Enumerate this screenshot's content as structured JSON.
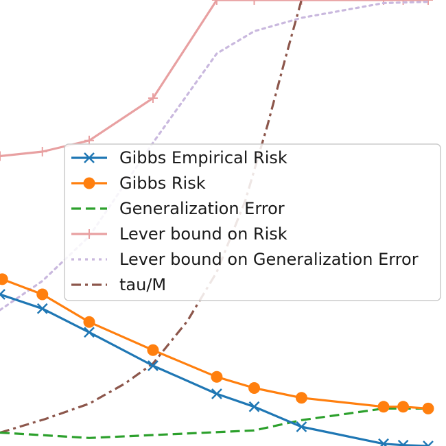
{
  "chart_data": {
    "type": "line",
    "title": "",
    "xlabel": "",
    "ylabel": "",
    "xlim": [
      0,
      10
    ],
    "ylim": [
      0,
      10
    ],
    "grid": false,
    "legend_position": "center-right",
    "series": [
      {
        "name": "Gibbs Empirical Risk",
        "color": "#1f77b4",
        "line_style": "solid",
        "marker": "x",
        "x": [
          0.0,
          0.95,
          2.0,
          3.43,
          4.86,
          5.7,
          6.76,
          8.6,
          9.04,
          9.6
        ],
        "y": [
          3.4,
          3.08,
          2.55,
          1.8,
          1.17,
          0.88,
          0.43,
          0.05,
          0.02,
          0.0
        ]
      },
      {
        "name": "Gibbs Risk",
        "color": "#ff7f0e",
        "line_style": "solid",
        "marker": "o",
        "x": [
          0.05,
          0.95,
          2.0,
          3.43,
          4.86,
          5.7,
          6.76,
          8.6,
          9.04,
          9.6
        ],
        "y": [
          3.74,
          3.4,
          2.78,
          2.15,
          1.55,
          1.3,
          1.08,
          0.88,
          0.88,
          0.84
        ]
      },
      {
        "name": "Generalization Error",
        "color": "#2ca02c",
        "line_style": "dashed",
        "marker": "",
        "x": [
          0.0,
          2.0,
          5.7,
          6.76,
          8.6,
          9.6
        ],
        "y": [
          0.3,
          0.18,
          0.35,
          0.58,
          0.84,
          0.84
        ]
      },
      {
        "name": "Lever bound on Risk",
        "color": "#e8a0a1",
        "line_style": "solid",
        "marker": "+",
        "x": [
          0.0,
          0.95,
          2.0,
          3.43,
          4.86,
          5.7,
          6.76,
          8.6,
          9.04,
          9.6
        ],
        "y": [
          6.5,
          6.6,
          6.85,
          7.8,
          10.0,
          10.0,
          10.0,
          10.0,
          10.0,
          10.0
        ]
      },
      {
        "name": "Lever bound on Generalization Error",
        "color": "#c9b8de",
        "line_style": "dotted",
        "marker": "",
        "x": [
          0.0,
          0.95,
          2.0,
          3.43,
          4.86,
          5.7,
          6.76,
          8.6,
          9.6
        ],
        "y": [
          3.05,
          3.7,
          4.7,
          6.8,
          8.8,
          9.3,
          9.6,
          9.93,
          9.96
        ]
      },
      {
        "name": "tau/M",
        "color": "#8c564b",
        "line_style": "dashdot",
        "marker": "",
        "x": [
          0.0,
          1.0,
          2.0,
          2.8,
          3.43,
          4.2,
          4.86,
          5.5,
          6.0,
          6.4,
          6.76
        ],
        "y": [
          0.3,
          0.6,
          0.95,
          1.4,
          1.85,
          2.8,
          3.9,
          5.5,
          7.2,
          8.7,
          10.0
        ]
      }
    ]
  }
}
